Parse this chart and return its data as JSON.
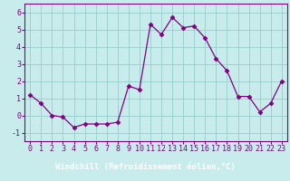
{
  "x": [
    0,
    1,
    2,
    3,
    4,
    5,
    6,
    7,
    8,
    9,
    10,
    11,
    12,
    13,
    14,
    15,
    16,
    17,
    18,
    19,
    20,
    21,
    22,
    23
  ],
  "y": [
    1.2,
    0.7,
    0.0,
    -0.1,
    -0.7,
    -0.5,
    -0.5,
    -0.5,
    -0.4,
    1.7,
    1.5,
    5.3,
    4.7,
    5.7,
    5.1,
    5.2,
    4.5,
    3.3,
    2.6,
    1.1,
    1.1,
    0.2,
    0.7,
    2.0
  ],
  "line_color": "#800080",
  "marker": "D",
  "marker_size": 2.5,
  "bg_color": "#c8ecec",
  "grid_color": "#99cccc",
  "bottom_band_color": "#800080",
  "xlabel": "Windchill (Refroidissement éolien,°C)",
  "xlim": [
    -0.5,
    23.5
  ],
  "ylim": [
    -1.5,
    6.5
  ],
  "yticks": [
    -1,
    0,
    1,
    2,
    3,
    4,
    5,
    6
  ],
  "xticks": [
    0,
    1,
    2,
    3,
    4,
    5,
    6,
    7,
    8,
    9,
    10,
    11,
    12,
    13,
    14,
    15,
    16,
    17,
    18,
    19,
    20,
    21,
    22,
    23
  ],
  "tick_color": "#800080",
  "label_color": "#ffffff",
  "spine_color": "#800080",
  "font_size": 6,
  "label_font_size": 6.5
}
